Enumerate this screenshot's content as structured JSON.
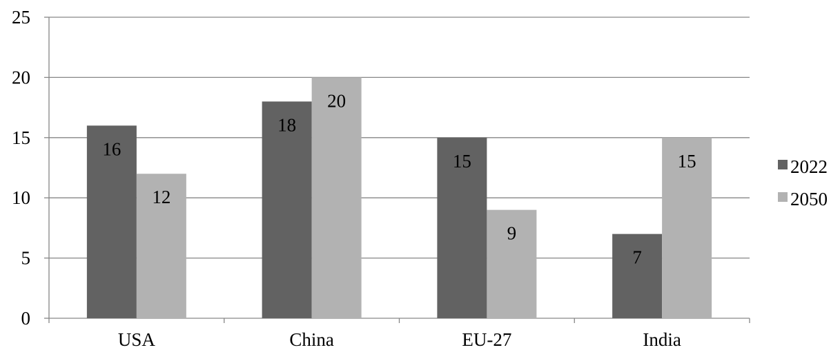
{
  "chart_data": {
    "type": "bar",
    "categories": [
      "USA",
      "China",
      "EU-27",
      "India"
    ],
    "series": [
      {
        "name": "2022",
        "values": [
          16,
          18,
          15,
          7
        ],
        "color": "#626262"
      },
      {
        "name": "2050",
        "values": [
          12,
          20,
          9,
          15
        ],
        "color": "#b2b2b2"
      }
    ],
    "ylim": [
      0,
      25
    ],
    "yticks": [
      "0",
      "5",
      "10",
      "15",
      "20",
      "25"
    ],
    "title": "",
    "xlabel": "",
    "ylabel": "",
    "grid": true,
    "legend_position": "right",
    "data_labels": true
  }
}
